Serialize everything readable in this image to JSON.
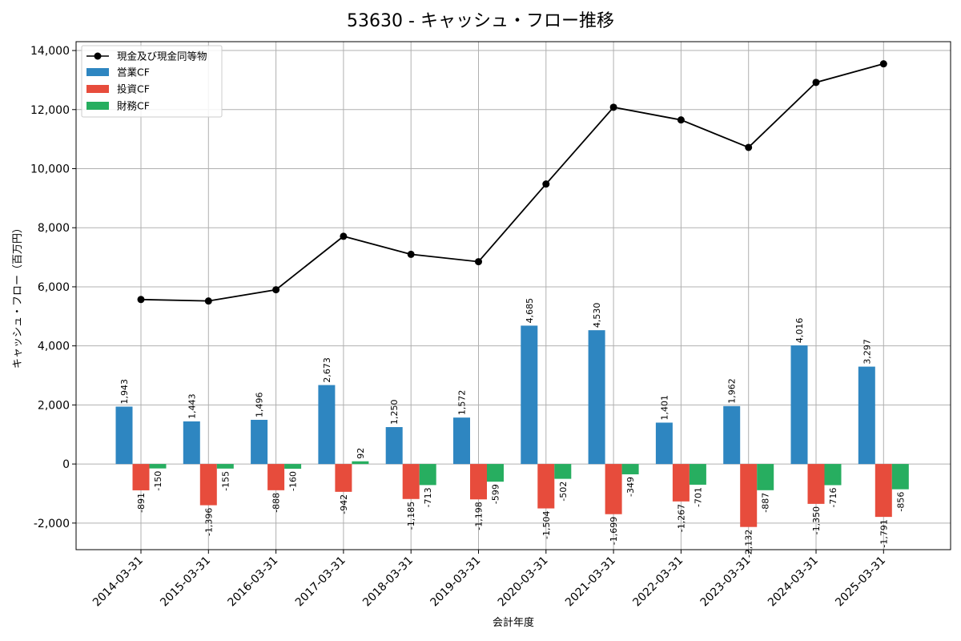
{
  "chart_data": {
    "type": "bar",
    "title": "53630 - キャッシュ・フロー推移",
    "xlabel": "会計年度",
    "ylabel": "キャッシュ・フロー（百万円）",
    "ylim": [
      -2900,
      14300
    ],
    "yticks": [
      -2000,
      0,
      2000,
      4000,
      6000,
      8000,
      10000,
      12000,
      14000
    ],
    "ytick_labels": [
      "-2,000",
      "0",
      "2,000",
      "4,000",
      "6,000",
      "8,000",
      "10,000",
      "12,000",
      "14,000"
    ],
    "grid": true,
    "legend_position": "top-left",
    "categories": [
      "2014-03-31",
      "2015-03-31",
      "2016-03-31",
      "2017-03-31",
      "2018-03-31",
      "2019-03-31",
      "2020-03-31",
      "2021-03-31",
      "2022-03-31",
      "2023-03-31",
      "2024-03-31",
      "2025-03-31"
    ],
    "line_series": {
      "name": "現金及び現金同等物",
      "color": "#000000",
      "values": [
        5570,
        5520,
        5900,
        7710,
        7100,
        6850,
        9480,
        12080,
        11650,
        10720,
        12920,
        13550
      ]
    },
    "series": [
      {
        "name": "営業CF",
        "color": "#2e86c1",
        "values": [
          1943,
          1443,
          1496,
          2673,
          1250,
          1572,
          4685,
          4530,
          1401,
          1962,
          4016,
          3297
        ],
        "labels": [
          "1,943",
          "1,443",
          "1,496",
          "2,673",
          "1,250",
          "1,572",
          "4,685",
          "4,530",
          "1,401",
          "1,962",
          "4,016",
          "3,297"
        ]
      },
      {
        "name": "投資CF",
        "color": "#e74c3c",
        "values": [
          -891,
          -1396,
          -888,
          -942,
          -1185,
          -1198,
          -1504,
          -1699,
          -1267,
          -2132,
          -1350,
          -1791
        ],
        "labels": [
          "-891",
          "-1,396",
          "-888",
          "-942",
          "-1,185",
          "-1,198",
          "-1,504",
          "-1,699",
          "-1,267",
          "-2,132",
          "-1,350",
          "-1,791"
        ]
      },
      {
        "name": "財務CF",
        "color": "#27ae60",
        "values": [
          -150,
          -155,
          -160,
          92,
          -713,
          -599,
          -502,
          -349,
          -701,
          -887,
          -716,
          -856
        ],
        "labels": [
          "-150",
          "-155",
          "-160",
          "92",
          "-713",
          "-599",
          "-502",
          "-349",
          "-701",
          "-887",
          "-716",
          "-856"
        ]
      }
    ]
  }
}
